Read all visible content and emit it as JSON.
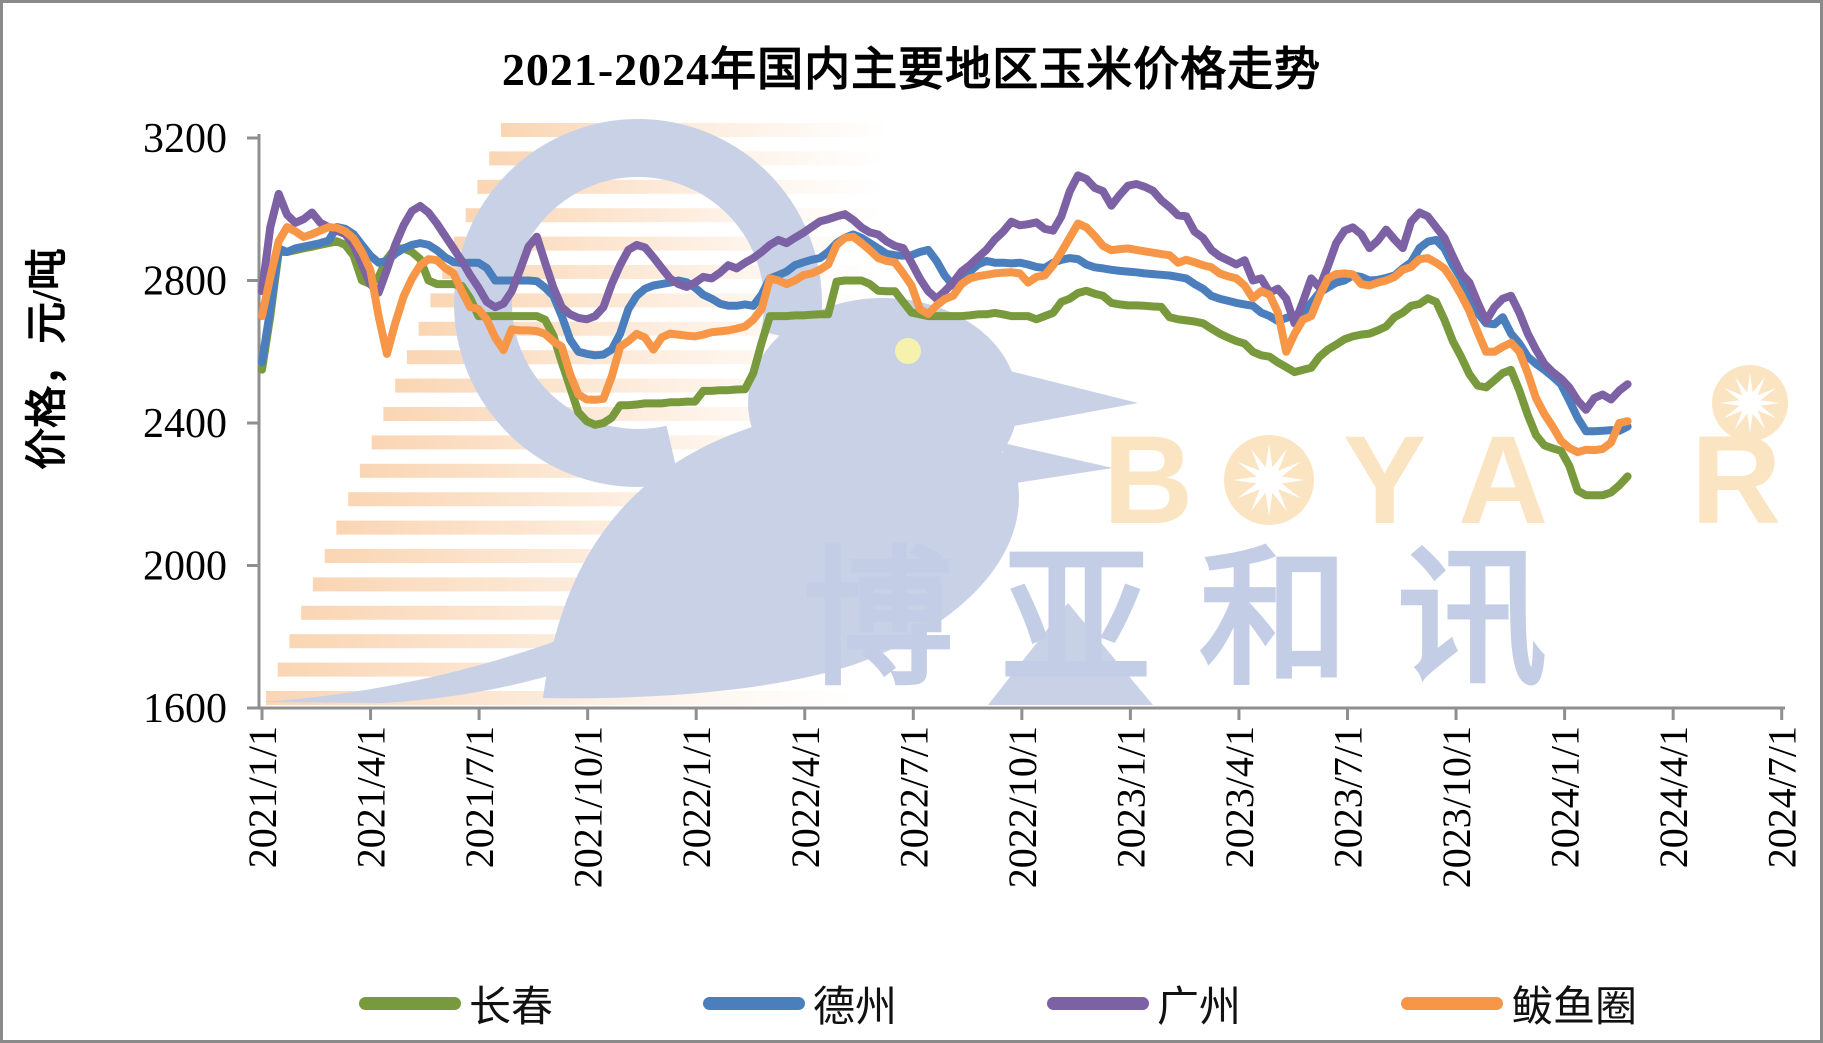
{
  "title": "2021-2024年国内主要地区玉米价格走势",
  "watermark": {
    "brand_latin": "BOYAR",
    "brand_cjk": "博亚和讯",
    "latin_color": "#FBE4C2",
    "cjk_color": "#C4CDE6",
    "bird_color": "#C9D1E6",
    "eye_color": "#F6F2AE",
    "stripe_color": "#F5AC67"
  },
  "chart_data": {
    "type": "line",
    "title": "2021-2024年国内主要地区玉米价格走势",
    "xlabel": "",
    "ylabel": "价格，元/吨",
    "ylim": [
      1600,
      3200
    ],
    "yticks": [
      3200,
      2800,
      2400,
      2000,
      1600
    ],
    "x_tick_labels": [
      "2021/1/1",
      "2021/4/1",
      "2021/7/1",
      "2021/10/1",
      "2022/1/1",
      "2022/4/1",
      "2022/7/1",
      "2022/10/1",
      "2023/1/1",
      "2023/4/1",
      "2023/7/1",
      "2023/10/1",
      "2024/1/1",
      "2024/4/1",
      "2024/7/1"
    ],
    "x_sampling": "weekly points starting 2021/1/1, ending late Feb 2024",
    "grid": false,
    "legend_position": "bottom",
    "axis_color": "#8f8f8f",
    "series": [
      {
        "name": "长春",
        "color": "#78993C",
        "values": [
          2550,
          2700,
          2880,
          2880,
          2885,
          2890,
          2895,
          2900,
          2905,
          2910,
          2900,
          2870,
          2800,
          2790,
          2810,
          2860,
          2890,
          2890,
          2880,
          2860,
          2800,
          2790,
          2790,
          2790,
          2785,
          2750,
          2700,
          2700,
          2700,
          2700,
          2700,
          2700,
          2700,
          2700,
          2690,
          2645,
          2570,
          2500,
          2430,
          2405,
          2395,
          2400,
          2415,
          2450,
          2450,
          2452,
          2455,
          2455,
          2455,
          2458,
          2458,
          2460,
          2460,
          2490,
          2490,
          2492,
          2492,
          2494,
          2495,
          2540,
          2625,
          2700,
          2700,
          2700,
          2702,
          2702,
          2704,
          2705,
          2705,
          2797,
          2800,
          2800,
          2800,
          2790,
          2771,
          2770,
          2770,
          2740,
          2710,
          2705,
          2700,
          2700,
          2700,
          2700,
          2700,
          2702,
          2705,
          2705,
          2709,
          2705,
          2700,
          2700,
          2700,
          2691,
          2700,
          2709,
          2740,
          2749,
          2765,
          2771,
          2763,
          2757,
          2737,
          2733,
          2730,
          2730,
          2729,
          2727,
          2726,
          2697,
          2691,
          2688,
          2685,
          2680,
          2665,
          2651,
          2640,
          2630,
          2623,
          2600,
          2590,
          2586,
          2570,
          2557,
          2543,
          2549,
          2555,
          2586,
          2606,
          2620,
          2635,
          2643,
          2648,
          2651,
          2660,
          2671,
          2697,
          2710,
          2729,
          2734,
          2750,
          2740,
          2690,
          2630,
          2586,
          2537,
          2505,
          2500,
          2520,
          2540,
          2549,
          2491,
          2423,
          2366,
          2337,
          2329,
          2322,
          2280,
          2210,
          2197,
          2197,
          2197,
          2205,
          2225,
          2250
        ]
      },
      {
        "name": "德州",
        "color": "#4A7EBD",
        "values": [
          2570,
          2720,
          2890,
          2880,
          2890,
          2895,
          2900,
          2905,
          2912,
          2950,
          2945,
          2930,
          2900,
          2870,
          2850,
          2855,
          2875,
          2890,
          2900,
          2905,
          2900,
          2885,
          2865,
          2852,
          2849,
          2850,
          2850,
          2835,
          2800,
          2800,
          2800,
          2800,
          2800,
          2798,
          2780,
          2757,
          2700,
          2634,
          2600,
          2594,
          2590,
          2592,
          2606,
          2650,
          2720,
          2757,
          2777,
          2786,
          2790,
          2794,
          2800,
          2795,
          2780,
          2760,
          2749,
          2735,
          2729,
          2729,
          2733,
          2729,
          2760,
          2806,
          2815,
          2825,
          2843,
          2851,
          2858,
          2863,
          2880,
          2905,
          2920,
          2929,
          2920,
          2905,
          2890,
          2875,
          2871,
          2870,
          2871,
          2880,
          2886,
          2855,
          2814,
          2786,
          2800,
          2825,
          2845,
          2855,
          2850,
          2850,
          2848,
          2850,
          2845,
          2838,
          2835,
          2850,
          2858,
          2863,
          2860,
          2845,
          2837,
          2834,
          2830,
          2827,
          2825,
          2823,
          2820,
          2818,
          2816,
          2814,
          2810,
          2806,
          2790,
          2777,
          2757,
          2749,
          2743,
          2737,
          2733,
          2729,
          2710,
          2700,
          2686,
          2695,
          2700,
          2705,
          2737,
          2766,
          2780,
          2794,
          2800,
          2814,
          2810,
          2800,
          2802,
          2807,
          2814,
          2834,
          2851,
          2891,
          2909,
          2914,
          2890,
          2843,
          2806,
          2757,
          2709,
          2680,
          2677,
          2697,
          2651,
          2623,
          2586,
          2566,
          2549,
          2530,
          2509,
          2463,
          2414,
          2377,
          2377,
          2378,
          2380,
          2378,
          2390
        ]
      },
      {
        "name": "广州",
        "color": "#7C61A4",
        "values": [
          2770,
          2950,
          3043,
          2985,
          2962,
          2972,
          2991,
          2962,
          2950,
          2940,
          2930,
          2900,
          2845,
          2790,
          2766,
          2830,
          2900,
          2955,
          2995,
          3009,
          2991,
          2960,
          2925,
          2890,
          2855,
          2815,
          2780,
          2740,
          2725,
          2735,
          2770,
          2830,
          2895,
          2923,
          2850,
          2780,
          2725,
          2705,
          2695,
          2691,
          2700,
          2725,
          2790,
          2843,
          2886,
          2900,
          2893,
          2865,
          2835,
          2806,
          2790,
          2782,
          2794,
          2810,
          2806,
          2822,
          2843,
          2834,
          2850,
          2863,
          2880,
          2900,
          2914,
          2905,
          2920,
          2934,
          2950,
          2966,
          2972,
          2980,
          2986,
          2970,
          2949,
          2935,
          2929,
          2910,
          2897,
          2891,
          2850,
          2806,
          2770,
          2749,
          2770,
          2794,
          2825,
          2843,
          2865,
          2886,
          2915,
          2937,
          2965,
          2955,
          2958,
          2963,
          2945,
          2940,
          2980,
          3050,
          3095,
          3085,
          3060,
          3051,
          3010,
          3040,
          3066,
          3071,
          3063,
          3052,
          3025,
          3006,
          2983,
          2980,
          2937,
          2920,
          2886,
          2868,
          2857,
          2845,
          2857,
          2800,
          2806,
          2766,
          2777,
          2749,
          2680,
          2740,
          2806,
          2780,
          2840,
          2905,
          2940,
          2949,
          2930,
          2891,
          2912,
          2943,
          2915,
          2891,
          2965,
          2991,
          2980,
          2950,
          2920,
          2868,
          2820,
          2794,
          2738,
          2686,
          2725,
          2749,
          2757,
          2709,
          2651,
          2606,
          2566,
          2543,
          2525,
          2500,
          2463,
          2437,
          2470,
          2480,
          2466,
          2491,
          2509
        ]
      },
      {
        "name": "鲅鱼圈",
        "color": "#F79646",
        "values": [
          2700,
          2810,
          2910,
          2950,
          2938,
          2922,
          2930,
          2940,
          2950,
          2948,
          2938,
          2918,
          2880,
          2830,
          2700,
          2594,
          2680,
          2755,
          2805,
          2843,
          2860,
          2857,
          2835,
          2820,
          2770,
          2725,
          2720,
          2690,
          2640,
          2605,
          2663,
          2660,
          2660,
          2658,
          2650,
          2629,
          2614,
          2537,
          2480,
          2466,
          2465,
          2468,
          2530,
          2614,
          2630,
          2650,
          2640,
          2606,
          2640,
          2651,
          2648,
          2645,
          2643,
          2648,
          2655,
          2657,
          2660,
          2665,
          2671,
          2690,
          2720,
          2806,
          2800,
          2790,
          2800,
          2815,
          2820,
          2830,
          2845,
          2900,
          2920,
          2923,
          2905,
          2885,
          2863,
          2855,
          2851,
          2820,
          2786,
          2720,
          2706,
          2730,
          2748,
          2757,
          2790,
          2806,
          2812,
          2816,
          2820,
          2822,
          2823,
          2820,
          2794,
          2810,
          2814,
          2843,
          2880,
          2920,
          2960,
          2949,
          2925,
          2897,
          2885,
          2888,
          2890,
          2886,
          2882,
          2878,
          2874,
          2871,
          2850,
          2858,
          2851,
          2843,
          2837,
          2820,
          2812,
          2806,
          2786,
          2750,
          2770,
          2760,
          2710,
          2600,
          2650,
          2690,
          2700,
          2757,
          2806,
          2818,
          2820,
          2817,
          2790,
          2786,
          2794,
          2800,
          2810,
          2830,
          2838,
          2860,
          2863,
          2850,
          2834,
          2800,
          2760,
          2714,
          2655,
          2600,
          2600,
          2614,
          2625,
          2600,
          2540,
          2470,
          2425,
          2390,
          2350,
          2330,
          2318,
          2325,
          2324,
          2327,
          2345,
          2400,
          2405
        ]
      }
    ]
  }
}
